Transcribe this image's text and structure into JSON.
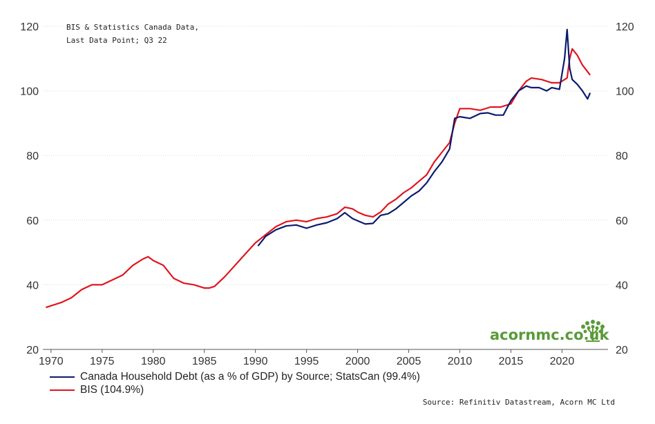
{
  "chart_data": {
    "type": "line",
    "annotation": [
      "BIS & Statistics Canada Data,",
      "Last Data Point; Q3 22"
    ],
    "xlim": [
      1969.2,
      2024.5
    ],
    "ylim": [
      20,
      120
    ],
    "yticks": [
      20,
      40,
      60,
      80,
      100,
      120
    ],
    "xticks": [
      1970,
      1975,
      1980,
      1985,
      1990,
      1995,
      2000,
      2005,
      2010,
      2015,
      2020
    ],
    "grid": true,
    "series": [
      {
        "name": "Canada Household Debt (as a % of GDP)  by Source; StatsCan (99.4%)",
        "color": "#0a1a6e",
        "x": [
          1990.25,
          1991,
          1992,
          1993,
          1994,
          1995,
          1996,
          1997,
          1998,
          1998.75,
          1999.5,
          2000,
          2000.75,
          2001.5,
          2002.25,
          2003,
          2003.75,
          2004.5,
          2005.25,
          2006,
          2006.75,
          2007.5,
          2008.25,
          2009,
          2009.5,
          2010,
          2011,
          2012,
          2012.75,
          2013.5,
          2014.25,
          2015,
          2015.75,
          2016.5,
          2017,
          2017.75,
          2018.5,
          2019,
          2019.75,
          2020.25,
          2020.5,
          2020.75,
          2021,
          2021.5,
          2022,
          2022.5,
          2022.75
        ],
        "values": [
          52,
          55,
          57,
          58.2,
          58.5,
          57.5,
          58.5,
          59.2,
          60.5,
          62.3,
          60.5,
          59.8,
          58.8,
          59,
          61.5,
          62,
          63.5,
          65.5,
          67.5,
          69,
          71.5,
          75,
          78,
          82,
          91.5,
          92,
          91.5,
          93,
          93.2,
          92.5,
          92.5,
          97,
          100,
          101.5,
          101,
          101,
          100,
          101,
          100.5,
          110,
          119,
          107,
          103.5,
          102,
          100,
          97.5,
          99.4
        ]
      },
      {
        "name": "BIS (104.9%)",
        "color": "#e0141e",
        "x": [
          1969.5,
          1970,
          1971,
          1972,
          1973,
          1974,
          1975,
          1976,
          1977,
          1978,
          1979,
          1979.5,
          1980,
          1981,
          1982,
          1983,
          1984,
          1985,
          1985.5,
          1986,
          1987,
          1988,
          1989,
          1990,
          1991,
          1992,
          1993,
          1994,
          1995,
          1996,
          1997,
          1998,
          1998.75,
          1999.5,
          2000,
          2000.75,
          2001.5,
          2002.25,
          2003,
          2003.75,
          2004.5,
          2005.25,
          2006,
          2006.75,
          2007.5,
          2008.25,
          2009,
          2009.5,
          2010,
          2011,
          2012,
          2013,
          2014,
          2015,
          2015.75,
          2016.5,
          2017,
          2018,
          2019,
          2019.75,
          2020.25,
          2020.5,
          2020.75,
          2021,
          2021.5,
          2022,
          2022.75
        ],
        "values": [
          33,
          33.5,
          34.5,
          36,
          38.5,
          40,
          40,
          41.5,
          43,
          46,
          48,
          48.7,
          47.5,
          46,
          42,
          40.5,
          40,
          39,
          39,
          39.5,
          42.5,
          46,
          49.5,
          53,
          55.5,
          58,
          59.5,
          60,
          59.5,
          60.5,
          61,
          62,
          64,
          63.5,
          62.5,
          61.5,
          61,
          62.5,
          65,
          66.5,
          68.5,
          70,
          72,
          74,
          78,
          81,
          84,
          90,
          94.5,
          94.5,
          94,
          95,
          95,
          96,
          100,
          103,
          104,
          103.5,
          102.5,
          102.5,
          103.5,
          104,
          110,
          113,
          111,
          108,
          104.9
        ]
      }
    ]
  },
  "source": "Source: Refinitiv Datastream, Acorn MC Ltd",
  "logo_text": "acornmc.co.uk"
}
